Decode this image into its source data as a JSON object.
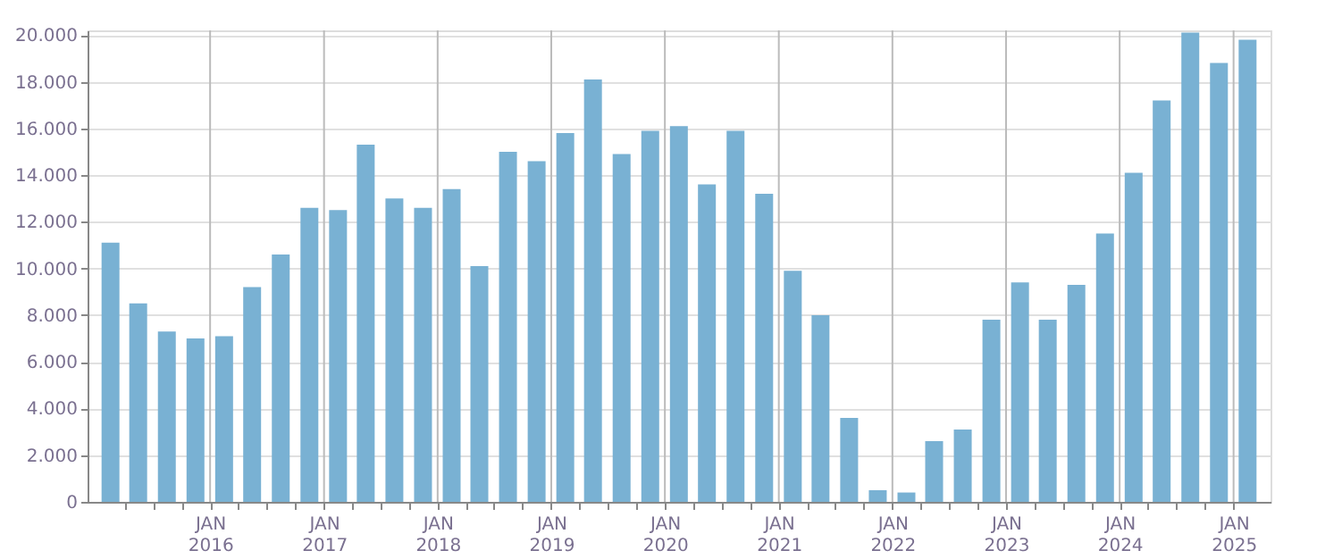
{
  "chart_data": {
    "type": "bar",
    "color": "#79b1d3",
    "x": [
      "2015-02-15",
      "2015-05-15",
      "2015-08-15",
      "2015-11-15",
      "2016-02-15",
      "2016-05-15",
      "2016-08-15",
      "2016-11-15",
      "2017-02-15",
      "2017-05-15",
      "2017-08-15",
      "2017-11-15",
      "2018-02-15",
      "2018-05-15",
      "2018-08-15",
      "2018-11-15",
      "2019-02-15",
      "2019-05-15",
      "2019-08-15",
      "2019-11-15",
      "2020-02-15",
      "2020-05-15",
      "2020-08-15",
      "2020-11-15",
      "2021-02-15",
      "2021-05-15",
      "2021-08-15",
      "2021-11-15",
      "2022-02-15",
      "2022-05-15",
      "2022-08-15",
      "2022-11-15",
      "2023-02-15",
      "2023-05-15",
      "2023-08-15",
      "2023-11-15",
      "2024-02-15",
      "2024-05-15",
      "2024-08-15",
      "2024-11-15",
      "2025-02-15"
    ],
    "values": [
      11100,
      8500,
      7300,
      7000,
      7100,
      9200,
      10600,
      12600,
      12500,
      15300,
      13000,
      12600,
      13400,
      10100,
      15000,
      14600,
      15800,
      18100,
      14900,
      15900,
      16100,
      13600,
      15900,
      13200,
      9900,
      8000,
      3600,
      500,
      400,
      2600,
      3100,
      7800,
      9400,
      7800,
      9300,
      11500,
      14100,
      17200,
      20100,
      18800,
      19800
    ],
    "xlim": [
      "2015-01-01",
      "2025-04-01"
    ],
    "xticks": [
      {
        "value": "2015-04-01",
        "label": null
      },
      {
        "value": "2015-07-01",
        "label": null
      },
      {
        "value": "2015-10-01",
        "label": null
      },
      {
        "value": "2016-01-01",
        "label": "JAN 2016"
      },
      {
        "value": "2016-04-01",
        "label": null
      },
      {
        "value": "2016-07-01",
        "label": null
      },
      {
        "value": "2016-10-01",
        "label": null
      },
      {
        "value": "2017-01-01",
        "label": "JAN 2017"
      },
      {
        "value": "2017-04-01",
        "label": null
      },
      {
        "value": "2017-07-01",
        "label": null
      },
      {
        "value": "2017-10-01",
        "label": null
      },
      {
        "value": "2018-01-01",
        "label": "JAN 2018"
      },
      {
        "value": "2018-04-01",
        "label": null
      },
      {
        "value": "2018-07-01",
        "label": null
      },
      {
        "value": "2018-10-01",
        "label": null
      },
      {
        "value": "2019-01-01",
        "label": "JAN 2019"
      },
      {
        "value": "2019-04-01",
        "label": null
      },
      {
        "value": "2019-07-01",
        "label": null
      },
      {
        "value": "2019-10-01",
        "label": null
      },
      {
        "value": "2020-01-01",
        "label": "JAN 2020"
      },
      {
        "value": "2020-04-01",
        "label": null
      },
      {
        "value": "2020-07-01",
        "label": null
      },
      {
        "value": "2020-10-01",
        "label": null
      },
      {
        "value": "2021-01-01",
        "label": "JAN 2021"
      },
      {
        "value": "2021-04-01",
        "label": null
      },
      {
        "value": "2021-07-01",
        "label": null
      },
      {
        "value": "2021-10-01",
        "label": null
      },
      {
        "value": "2022-01-01",
        "label": "JAN 2022"
      },
      {
        "value": "2022-04-01",
        "label": null
      },
      {
        "value": "2022-07-01",
        "label": null
      },
      {
        "value": "2022-10-01",
        "label": null
      },
      {
        "value": "2023-01-01",
        "label": "JAN 2023"
      },
      {
        "value": "2023-04-01",
        "label": null
      },
      {
        "value": "2023-07-01",
        "label": null
      },
      {
        "value": "2023-10-01",
        "label": null
      },
      {
        "value": "2024-01-01",
        "label": "JAN 2024"
      },
      {
        "value": "2024-04-01",
        "label": null
      },
      {
        "value": "2024-07-01",
        "label": null
      },
      {
        "value": "2024-10-01",
        "label": null
      },
      {
        "value": "2025-01-01",
        "label": "JAN 2025"
      }
    ],
    "ylim": [
      0,
      20200
    ],
    "yticks": [
      0,
      {
        "value": 2000,
        "label": "2.000"
      },
      {
        "value": 4000,
        "label": "4.000"
      },
      {
        "value": 6000,
        "label": "6.000"
      },
      {
        "value": 8000,
        "label": "8.000"
      },
      {
        "value": 10000,
        "label": "10.000"
      },
      {
        "value": 12000,
        "label": "12.000"
      },
      {
        "value": 14000,
        "label": "14.000"
      },
      {
        "value": 16000,
        "label": "16.000"
      },
      {
        "value": 18000,
        "label": "18.000"
      },
      {
        "value": 20000,
        "label": "20.000"
      }
    ],
    "grid": true
  }
}
